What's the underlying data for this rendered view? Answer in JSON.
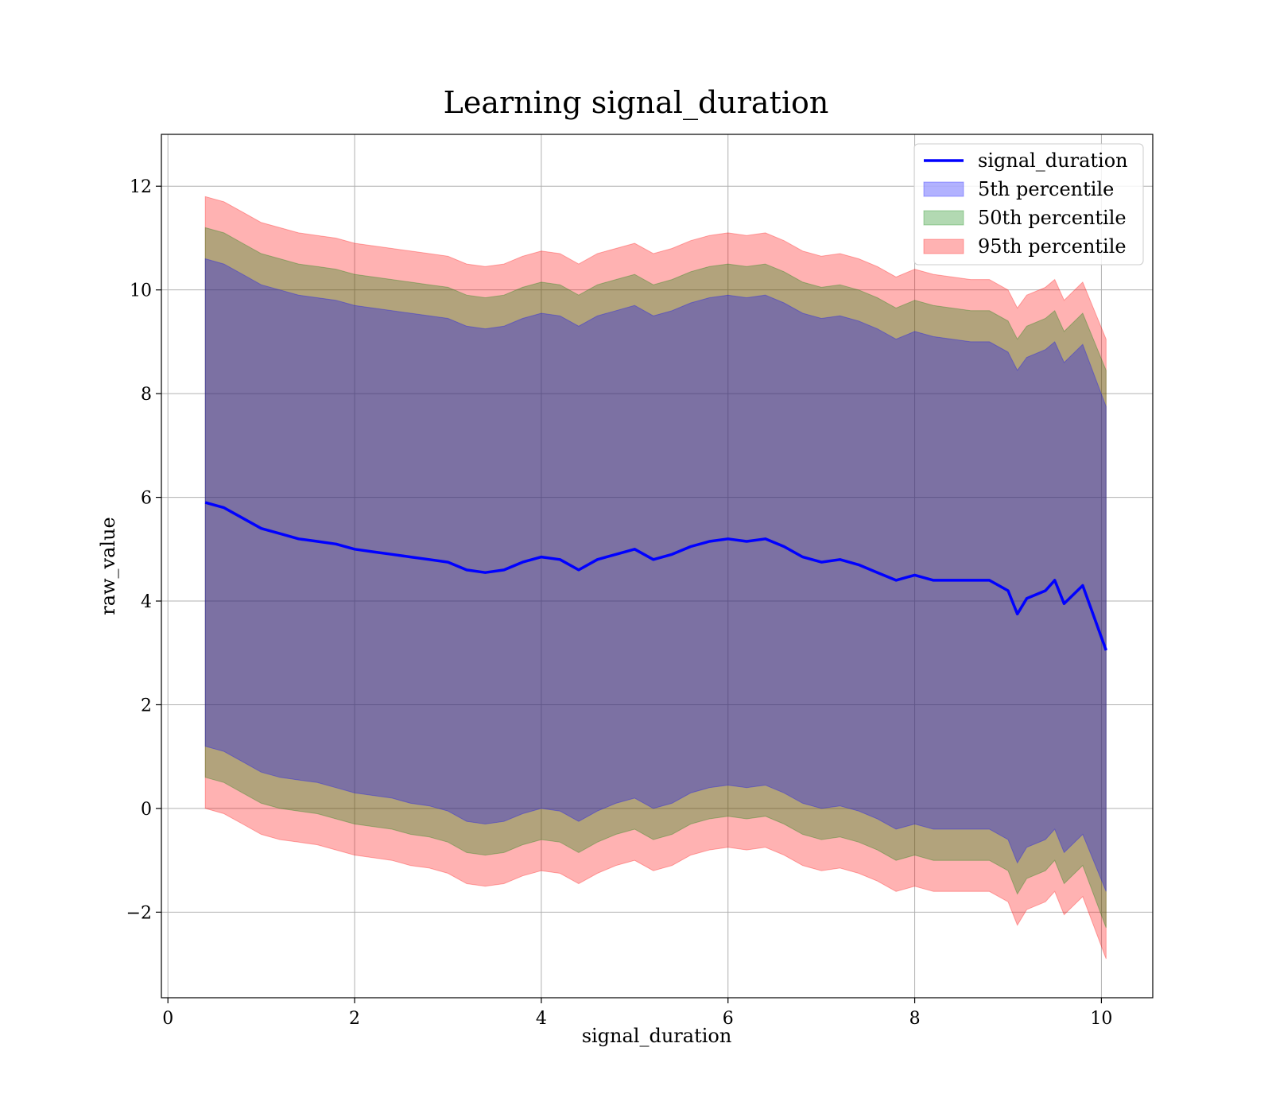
{
  "chart_data": {
    "type": "area",
    "title": "Learning signal_duration",
    "xlabel": "signal_duration",
    "ylabel": "raw_value",
    "xlim": [
      -0.07,
      10.55
    ],
    "ylim": [
      -3.65,
      13.0
    ],
    "x_ticks": [
      0,
      2,
      4,
      6,
      8,
      10
    ],
    "x_tick_labels": [
      "0",
      "2",
      "4",
      "6",
      "8",
      "10"
    ],
    "y_ticks": [
      -2,
      0,
      2,
      4,
      6,
      8,
      10,
      12
    ],
    "y_tick_labels": [
      "−2",
      "0",
      "2",
      "4",
      "6",
      "8",
      "10",
      "12"
    ],
    "grid": true,
    "legend_position": "top-right",
    "legend": [
      "signal_duration",
      "5th percentile",
      "50th percentile",
      "95th percentile"
    ],
    "x": [
      0.4,
      0.6,
      0.8,
      1.0,
      1.2,
      1.4,
      1.6,
      1.8,
      2.0,
      2.2,
      2.4,
      2.6,
      2.8,
      3.0,
      3.2,
      3.4,
      3.6,
      3.8,
      4.0,
      4.2,
      4.4,
      4.6,
      4.8,
      5.0,
      5.2,
      5.4,
      5.6,
      5.8,
      6.0,
      6.2,
      6.4,
      6.6,
      6.8,
      7.0,
      7.2,
      7.4,
      7.6,
      7.8,
      8.0,
      8.2,
      8.4,
      8.6,
      8.8,
      9.0,
      9.1,
      9.2,
      9.4,
      9.5,
      9.6,
      9.8,
      10.05
    ],
    "series": [
      {
        "name": "signal_duration",
        "kind": "line",
        "color": "#0000ff",
        "values": [
          5.9,
          5.8,
          5.6,
          5.4,
          5.3,
          5.2,
          5.15,
          5.1,
          5.0,
          4.95,
          4.9,
          4.85,
          4.8,
          4.75,
          4.6,
          4.55,
          4.6,
          4.75,
          4.85,
          4.8,
          4.6,
          4.8,
          4.9,
          5.0,
          4.8,
          4.9,
          5.05,
          5.15,
          5.2,
          5.15,
          5.2,
          5.05,
          4.85,
          4.75,
          4.8,
          4.7,
          4.55,
          4.4,
          4.5,
          4.4,
          4.4,
          4.4,
          4.4,
          4.2,
          3.75,
          4.05,
          4.2,
          4.4,
          3.95,
          4.3,
          3.05
        ]
      },
      {
        "name": "5th percentile",
        "kind": "band",
        "color": "#0000ff",
        "lower": [
          1.2,
          1.1,
          0.9,
          0.7,
          0.6,
          0.55,
          0.5,
          0.4,
          0.3,
          0.25,
          0.2,
          0.1,
          0.05,
          -0.05,
          -0.25,
          -0.3,
          -0.25,
          -0.1,
          0.0,
          -0.05,
          -0.25,
          -0.05,
          0.1,
          0.2,
          0.0,
          0.1,
          0.3,
          0.4,
          0.45,
          0.4,
          0.45,
          0.3,
          0.1,
          0.0,
          0.05,
          -0.05,
          -0.2,
          -0.4,
          -0.3,
          -0.4,
          -0.4,
          -0.4,
          -0.4,
          -0.6,
          -1.05,
          -0.75,
          -0.6,
          -0.4,
          -0.85,
          -0.5,
          -1.6
        ],
        "upper": [
          10.6,
          10.5,
          10.3,
          10.1,
          10.0,
          9.9,
          9.85,
          9.8,
          9.7,
          9.65,
          9.6,
          9.55,
          9.5,
          9.45,
          9.3,
          9.25,
          9.3,
          9.45,
          9.55,
          9.5,
          9.3,
          9.5,
          9.6,
          9.7,
          9.5,
          9.6,
          9.75,
          9.85,
          9.9,
          9.85,
          9.9,
          9.75,
          9.55,
          9.45,
          9.5,
          9.4,
          9.25,
          9.05,
          9.2,
          9.1,
          9.05,
          9.0,
          9.0,
          8.8,
          8.45,
          8.7,
          8.85,
          9.0,
          8.6,
          8.95,
          7.75
        ]
      },
      {
        "name": "50th percentile",
        "kind": "band",
        "color": "#008000",
        "lower": [
          0.6,
          0.5,
          0.3,
          0.1,
          0.0,
          -0.05,
          -0.1,
          -0.2,
          -0.3,
          -0.35,
          -0.4,
          -0.5,
          -0.55,
          -0.65,
          -0.85,
          -0.9,
          -0.85,
          -0.7,
          -0.6,
          -0.65,
          -0.85,
          -0.65,
          -0.5,
          -0.4,
          -0.6,
          -0.5,
          -0.3,
          -0.2,
          -0.15,
          -0.2,
          -0.15,
          -0.3,
          -0.5,
          -0.6,
          -0.55,
          -0.65,
          -0.8,
          -1.0,
          -0.9,
          -1.0,
          -1.0,
          -1.0,
          -1.0,
          -1.2,
          -1.65,
          -1.35,
          -1.2,
          -1.0,
          -1.45,
          -1.1,
          -2.3
        ],
        "upper": [
          11.2,
          11.1,
          10.9,
          10.7,
          10.6,
          10.5,
          10.45,
          10.4,
          10.3,
          10.25,
          10.2,
          10.15,
          10.1,
          10.05,
          9.9,
          9.85,
          9.9,
          10.05,
          10.15,
          10.1,
          9.9,
          10.1,
          10.2,
          10.3,
          10.1,
          10.2,
          10.35,
          10.45,
          10.5,
          10.45,
          10.5,
          10.35,
          10.15,
          10.05,
          10.1,
          10.0,
          9.85,
          9.65,
          9.8,
          9.7,
          9.65,
          9.6,
          9.6,
          9.4,
          9.05,
          9.3,
          9.45,
          9.6,
          9.2,
          9.55,
          8.45
        ]
      },
      {
        "name": "95th percentile",
        "kind": "band",
        "color": "#ff0000",
        "lower": [
          0.0,
          -0.1,
          -0.3,
          -0.5,
          -0.6,
          -0.65,
          -0.7,
          -0.8,
          -0.9,
          -0.95,
          -1.0,
          -1.1,
          -1.15,
          -1.25,
          -1.45,
          -1.5,
          -1.45,
          -1.3,
          -1.2,
          -1.25,
          -1.45,
          -1.25,
          -1.1,
          -1.0,
          -1.2,
          -1.1,
          -0.9,
          -0.8,
          -0.75,
          -0.8,
          -0.75,
          -0.9,
          -1.1,
          -1.2,
          -1.15,
          -1.25,
          -1.4,
          -1.6,
          -1.5,
          -1.6,
          -1.6,
          -1.6,
          -1.6,
          -1.8,
          -2.25,
          -1.95,
          -1.8,
          -1.6,
          -2.05,
          -1.7,
          -2.9
        ],
        "upper": [
          11.8,
          11.7,
          11.5,
          11.3,
          11.2,
          11.1,
          11.05,
          11.0,
          10.9,
          10.85,
          10.8,
          10.75,
          10.7,
          10.65,
          10.5,
          10.45,
          10.5,
          10.65,
          10.75,
          10.7,
          10.5,
          10.7,
          10.8,
          10.9,
          10.7,
          10.8,
          10.95,
          11.05,
          11.1,
          11.05,
          11.1,
          10.95,
          10.75,
          10.65,
          10.7,
          10.6,
          10.45,
          10.25,
          10.4,
          10.3,
          10.25,
          10.2,
          10.2,
          10.0,
          9.65,
          9.9,
          10.05,
          10.2,
          9.8,
          10.15,
          9.05
        ]
      }
    ]
  }
}
